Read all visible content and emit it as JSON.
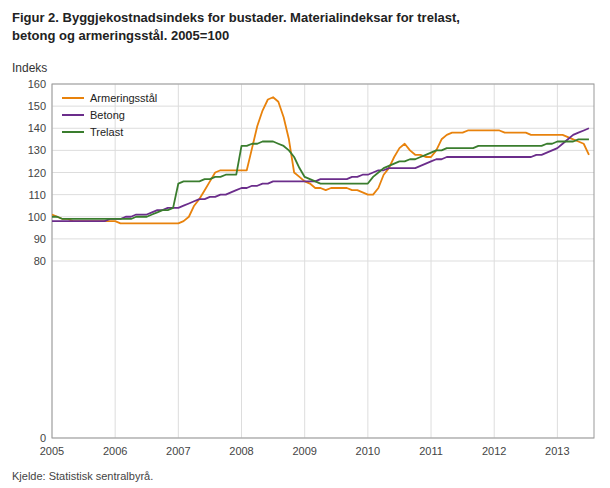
{
  "chart_data": {
    "type": "line",
    "title": "Figur 2. Byggjekostnadsindeks for bustader. Materialindeksar for trelast,",
    "subtitle": "betong og armeringsstål. 2005=100",
    "y_label": "Indeks",
    "annotations": [
      "Kjelde: Statistisk sentralbyrå."
    ],
    "x": [
      2005.0,
      2005.083,
      2005.167,
      2005.25,
      2005.333,
      2005.417,
      2005.5,
      2005.583,
      2005.667,
      2005.75,
      2005.833,
      2005.917,
      2006.0,
      2006.083,
      2006.167,
      2006.25,
      2006.333,
      2006.417,
      2006.5,
      2006.583,
      2006.667,
      2006.75,
      2006.833,
      2006.917,
      2007.0,
      2007.083,
      2007.167,
      2007.25,
      2007.333,
      2007.417,
      2007.5,
      2007.583,
      2007.667,
      2007.75,
      2007.833,
      2007.917,
      2008.0,
      2008.083,
      2008.167,
      2008.25,
      2008.333,
      2008.417,
      2008.5,
      2008.583,
      2008.667,
      2008.75,
      2008.833,
      2008.917,
      2009.0,
      2009.083,
      2009.167,
      2009.25,
      2009.333,
      2009.417,
      2009.5,
      2009.583,
      2009.667,
      2009.75,
      2009.833,
      2009.917,
      2010.0,
      2010.083,
      2010.167,
      2010.25,
      2010.333,
      2010.417,
      2010.5,
      2010.583,
      2010.667,
      2010.75,
      2010.833,
      2010.917,
      2011.0,
      2011.083,
      2011.167,
      2011.25,
      2011.333,
      2011.417,
      2011.5,
      2011.583,
      2011.667,
      2011.75,
      2011.833,
      2011.917,
      2012.0,
      2012.083,
      2012.167,
      2012.25,
      2012.333,
      2012.417,
      2012.5,
      2012.583,
      2012.667,
      2012.75,
      2012.833,
      2012.917,
      2013.0,
      2013.083,
      2013.167,
      2013.25,
      2013.333,
      2013.417,
      2013.5
    ],
    "series": [
      {
        "name": "Armeringsstål",
        "color": "#E8820C",
        "values": [
          101,
          100,
          99,
          99,
          98,
          98,
          98,
          98,
          98,
          98,
          98,
          98,
          98,
          97,
          97,
          97,
          97,
          97,
          97,
          97,
          97,
          97,
          97,
          97,
          97,
          98,
          100,
          105,
          108,
          112,
          116,
          120,
          121,
          121,
          121,
          121,
          121,
          121,
          131,
          141,
          148,
          153,
          154,
          152,
          145,
          135,
          120,
          118,
          116,
          115,
          113,
          113,
          112,
          113,
          113,
          113,
          113,
          112,
          112,
          111,
          110,
          110,
          113,
          119,
          122,
          127,
          131,
          133,
          130,
          128,
          128,
          127,
          127,
          130,
          135,
          137,
          138,
          138,
          138,
          139,
          139,
          139,
          139,
          139,
          139,
          139,
          138,
          138,
          138,
          138,
          138,
          137,
          137,
          137,
          137,
          137,
          137,
          137,
          136,
          135,
          134,
          133,
          128
        ]
      },
      {
        "name": "Betong",
        "color": "#6B2D8B",
        "values": [
          98,
          98,
          98,
          98,
          98,
          98,
          98,
          98,
          98,
          98,
          98,
          99,
          99,
          99,
          100,
          100,
          101,
          101,
          101,
          102,
          103,
          103,
          104,
          104,
          104,
          105,
          106,
          107,
          108,
          108,
          109,
          109,
          110,
          110,
          111,
          112,
          113,
          113,
          114,
          114,
          115,
          115,
          116,
          116,
          116,
          116,
          116,
          116,
          116,
          116,
          116,
          117,
          117,
          117,
          117,
          117,
          117,
          118,
          118,
          119,
          119,
          120,
          121,
          121,
          122,
          122,
          122,
          122,
          122,
          122,
          123,
          124,
          125,
          126,
          126,
          127,
          127,
          127,
          127,
          127,
          127,
          127,
          127,
          127,
          127,
          127,
          127,
          127,
          127,
          127,
          127,
          127,
          128,
          128,
          129,
          130,
          131,
          133,
          135,
          137,
          138,
          139,
          140
        ]
      },
      {
        "name": "Trelast",
        "color": "#3A7D2E",
        "values": [
          100,
          100,
          99,
          99,
          99,
          99,
          99,
          99,
          99,
          99,
          99,
          99,
          99,
          99,
          99,
          99,
          100,
          100,
          100,
          101,
          102,
          103,
          103,
          104,
          115,
          116,
          116,
          116,
          116,
          117,
          117,
          118,
          118,
          119,
          119,
          119,
          132,
          132,
          133,
          133,
          134,
          134,
          134,
          133,
          132,
          130,
          127,
          122,
          118,
          117,
          116,
          115,
          115,
          115,
          115,
          115,
          115,
          115,
          115,
          115,
          115,
          118,
          120,
          122,
          123,
          124,
          125,
          125,
          126,
          126,
          127,
          128,
          129,
          130,
          130,
          131,
          131,
          131,
          131,
          131,
          131,
          132,
          132,
          132,
          132,
          132,
          132,
          132,
          132,
          132,
          132,
          132,
          132,
          132,
          133,
          133,
          134,
          134,
          134,
          134,
          135,
          135,
          135
        ]
      }
    ],
    "xlim": [
      2005.0,
      2013.58
    ],
    "xticks": [
      2005,
      2006,
      2007,
      2008,
      2009,
      2010,
      2011,
      2012,
      2013
    ],
    "ylim": [
      0,
      160
    ],
    "yticks": [
      0,
      80,
      90,
      100,
      110,
      120,
      130,
      140,
      150,
      160
    ],
    "grid": true,
    "legend": "upper left"
  }
}
